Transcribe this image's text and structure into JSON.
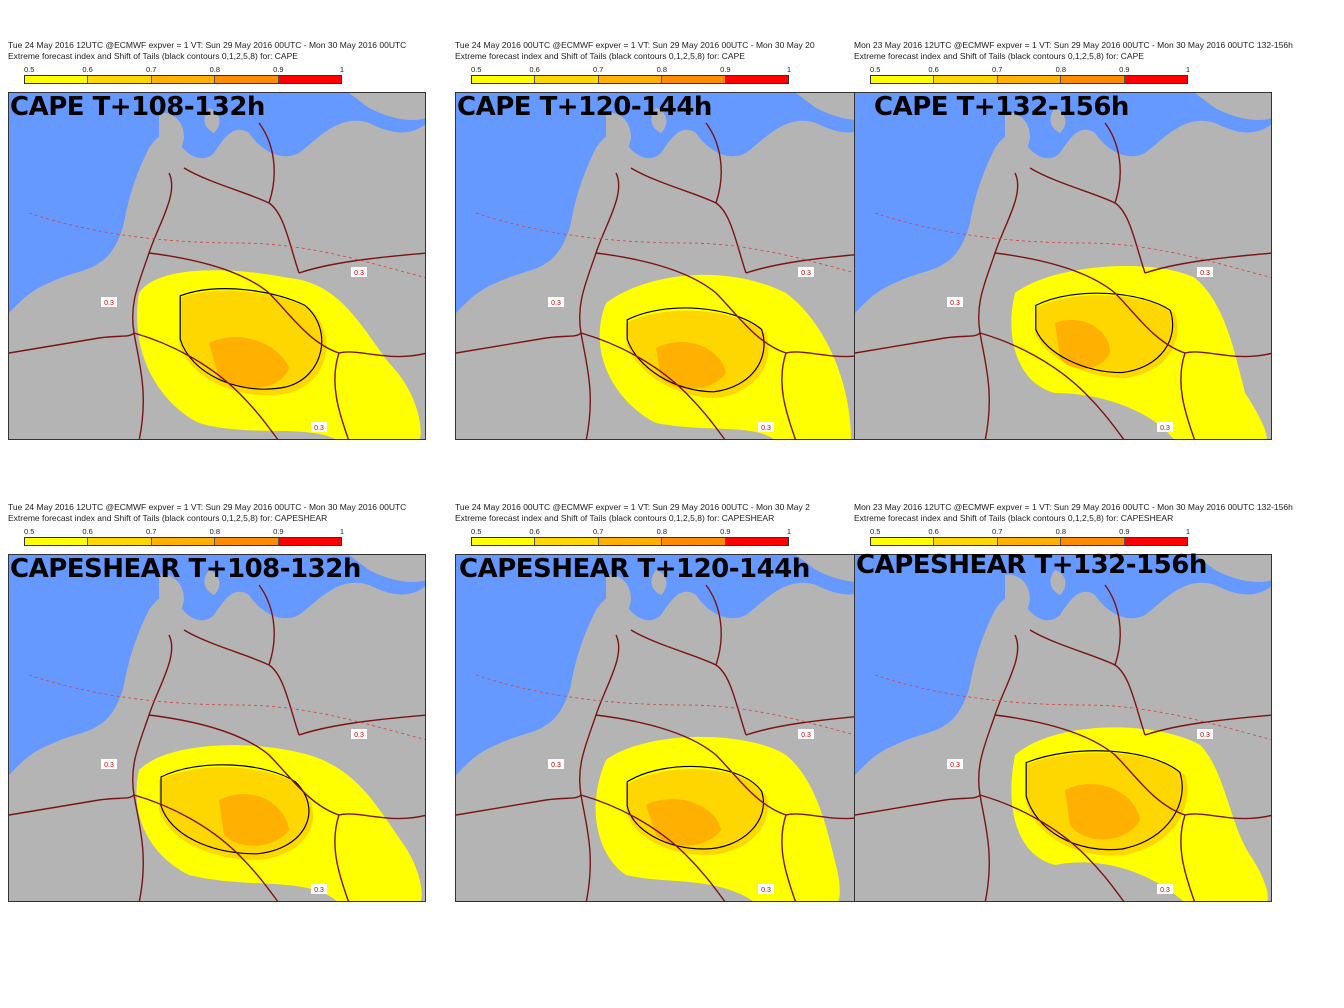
{
  "colorbar": {
    "ticks": [
      "0.5",
      "0.6",
      "0.7",
      "0.8",
      "0.9",
      "1"
    ],
    "colors": [
      "#ffff00",
      "#ffd700",
      "#ffb000",
      "#ff8c00",
      "#ff0000"
    ]
  },
  "map_colors": {
    "sea": "#6699ff",
    "land": "#b4b4b4",
    "efi_05": "#ffff00",
    "efi_06": "#ffd700",
    "efi_07": "#ffb000",
    "border": "#7a1414"
  },
  "contour_label": "0.3",
  "panels": [
    {
      "header1": "Tue 24 May 2016 12UTC @ECMWF expver = 1 VT: Sun 29 May 2016 00UTC - Mon 30 May 2016 00UTC",
      "header2": "Extreme forecast index and Shift of Tails (black contours 0,1,2,5,8) for: CAPE",
      "label": "CAPE T+108-132h"
    },
    {
      "header1": "Tue 24 May 2016 00UTC @ECMWF expver = 1 VT: Sun 29 May 2016 00UTC - Mon 30 May 20",
      "header2": "Extreme forecast index and Shift of Tails (black contours 0,1,2,5,8) for: CAPE",
      "label": "CAPE T+120-144h"
    },
    {
      "header1": "Mon 23 May 2016 12UTC @ECMWF expver = 1 VT: Sun 29 May 2016 00UTC - Mon 30 May 2016 00UTC  132-156h",
      "header2": "Extreme forecast index and Shift of Tails (black contours 0,1,2,5,8) for: CAPE",
      "label": "CAPE T+132-156h"
    },
    {
      "header1": "Tue 24 May 2016 12UTC @ECMWF expver = 1 VT: Sun 29 May 2016 00UTC - Mon 30 May 2016 00UTC",
      "header2": "Extreme forecast index and Shift of Tails (black contours 0,1,2,5,8) for: CAPESHEAR",
      "label": "CAPESHEAR T+108-132h"
    },
    {
      "header1": "Tue 24 May 2016 00UTC @ECMWF expver = 1 VT: Sun 29 May 2016 00UTC - Mon 30 May 2",
      "header2": "Extreme forecast index and Shift of Tails (black contours 0,1,2,5,8) for: CAPESHEAR",
      "label": "CAPESHEAR T+120-144h"
    },
    {
      "header1": "Mon 23 May 2016 12UTC @ECMWF expver = 1 VT: Sun 29 May 2016 00UTC - Mon 30 May 2016 00UTC  132-156h",
      "header2": "Extreme forecast index and Shift of Tails (black contours 0,1,2,5,8) for: CAPESHEAR",
      "label": "CAPESHEAR T+132-156h"
    }
  ]
}
